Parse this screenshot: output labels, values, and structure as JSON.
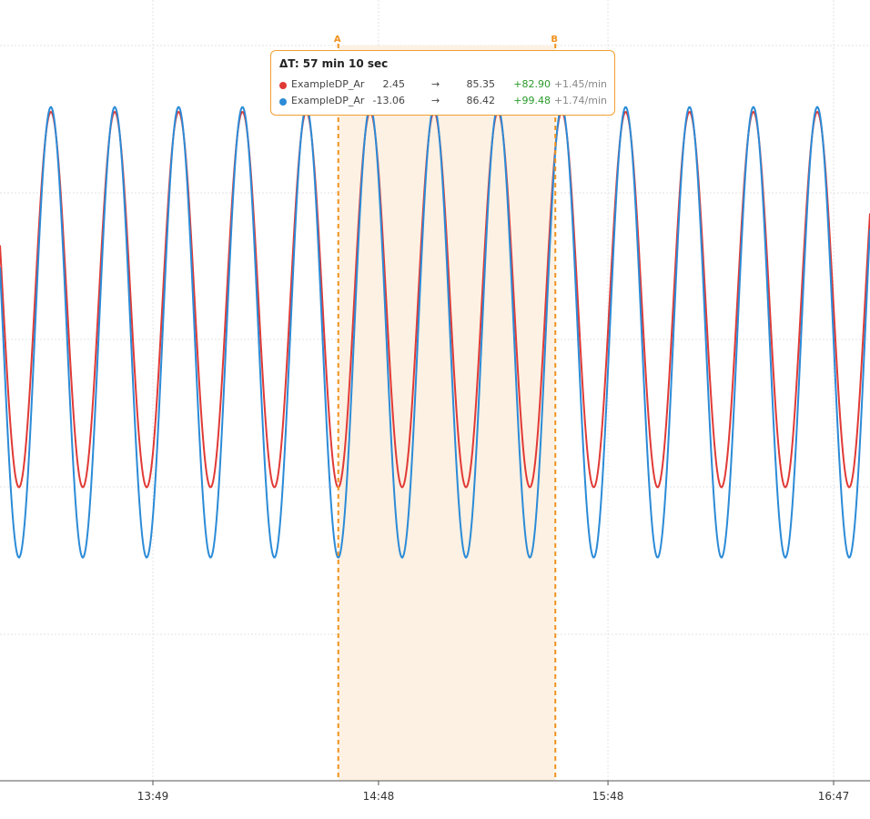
{
  "chart_data": {
    "type": "line",
    "x_ticks": [
      "13:49",
      "14:48",
      "15:48",
      "16:47"
    ],
    "y_range": [
      -30,
      100
    ],
    "grid": true,
    "series": [
      {
        "name": "ExampleDP_Ar",
        "color": "#e03a36",
        "min": 2.45,
        "max": 85.35,
        "period_min": 16.7
      },
      {
        "name": "ExampleDP_Ar",
        "color": "#2b8bd7",
        "min": -13.06,
        "max": 86.42,
        "period_min": 16.7
      }
    ],
    "cursors": [
      {
        "label": "A",
        "time": "14:37"
      },
      {
        "label": "B",
        "time": "15:34"
      }
    ],
    "cursor_color": "#f0921e",
    "tooltip": {
      "title": "ΔT: 57 min 10 sec",
      "rows": [
        {
          "dot_color": "#e03a36",
          "name": "ExampleDP_Ar",
          "a": "2.45",
          "arrow": "→",
          "b": "85.35",
          "delta": "+82.90",
          "rate": "+1.45/min"
        },
        {
          "dot_color": "#2b8bd7",
          "name": "ExampleDP_Ar",
          "a": "-13.06",
          "arrow": "→",
          "b": "86.42",
          "delta": "+99.48",
          "rate": "+1.74/min"
        }
      ]
    }
  }
}
